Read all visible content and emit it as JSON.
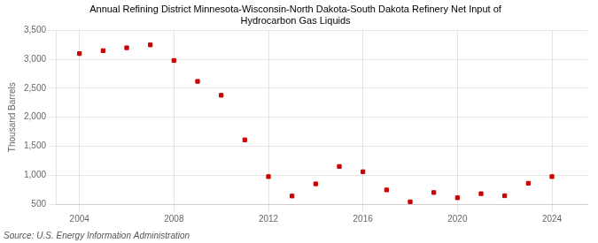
{
  "chart_data": {
    "type": "scatter",
    "title": "Annual Refining District Minnesota-Wisconsin-North Dakota-South Dakota Refinery Net Input of\nHydrocarbon Gas Liquids",
    "y_label": "Thousand Barrels",
    "annotations": [
      "Source: U.S. Energy Information Administration"
    ],
    "x": [
      2004,
      2005,
      2006,
      2007,
      2008,
      2009,
      2010,
      2011,
      2012,
      2013,
      2014,
      2015,
      2016,
      2017,
      2018,
      2019,
      2020,
      2021,
      2022,
      2023,
      2024
    ],
    "values": [
      3100,
      3150,
      3200,
      3250,
      2980,
      2620,
      2380,
      1610,
      975,
      640,
      850,
      1150,
      1060,
      745,
      540,
      700,
      610,
      680,
      645,
      860,
      975
    ],
    "color": "#cc0000",
    "marker": "square",
    "xlim": [
      2003.0,
      2025.5
    ],
    "ylim": [
      500,
      3500
    ],
    "xticks": [
      2004,
      2008,
      2012,
      2016,
      2020,
      2024
    ],
    "yticks": [
      500,
      {
        "value": 1000,
        "label": "1,000"
      },
      {
        "value": 1500,
        "label": "1,500"
      },
      {
        "value": 2000,
        "label": "2,000"
      },
      {
        "value": 2500,
        "label": "2,500"
      },
      {
        "value": 3000,
        "label": "3,000"
      },
      {
        "value": 3500,
        "label": "3,500"
      }
    ],
    "grid": true
  }
}
